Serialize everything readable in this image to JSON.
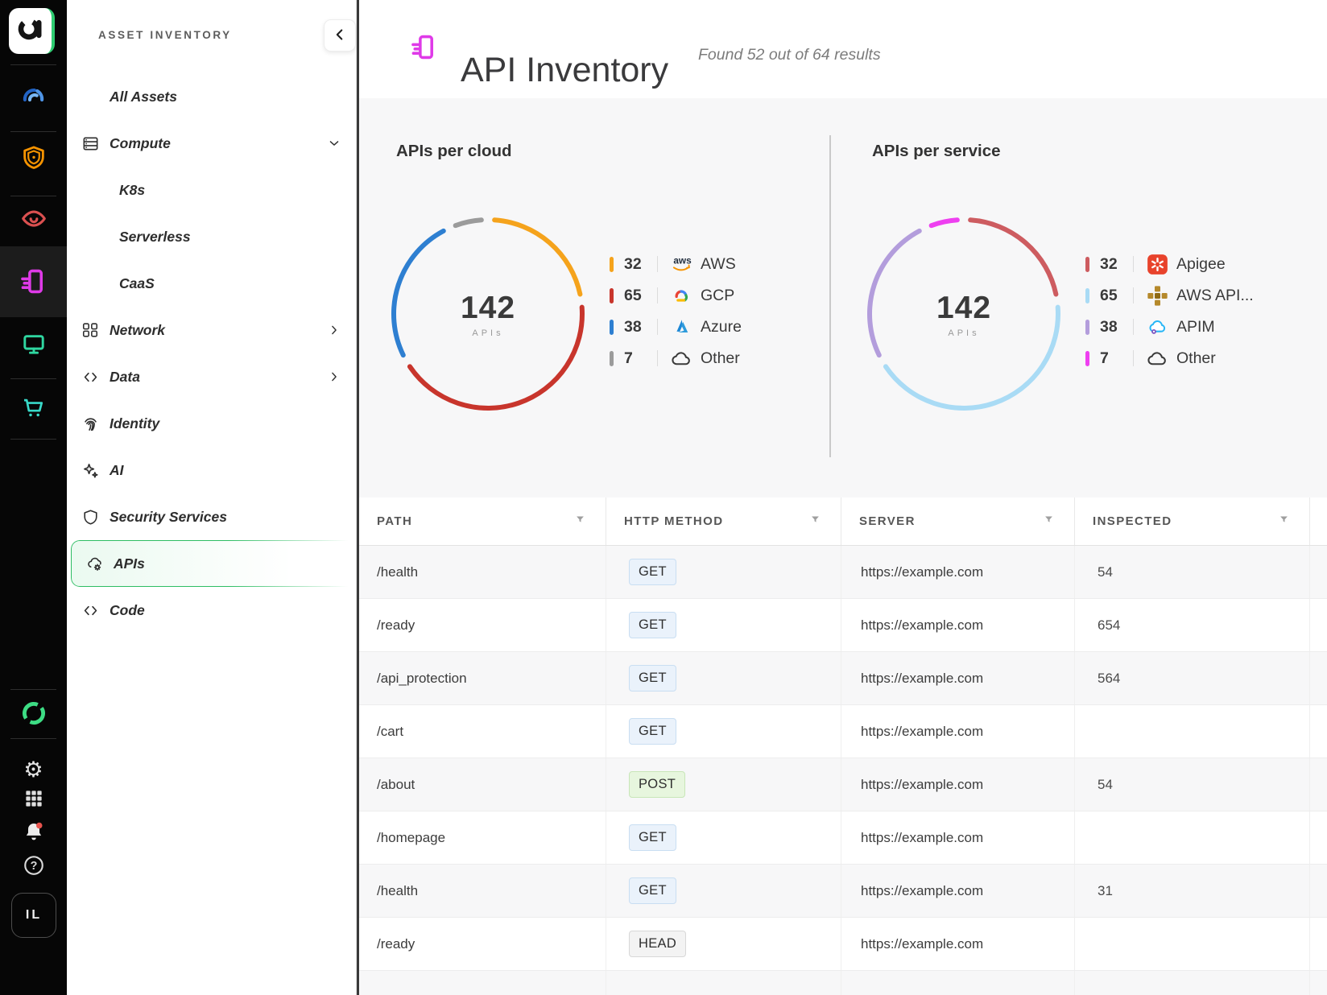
{
  "rail": {
    "user_initials": "IL",
    "icons": [
      "app-logo",
      "gauge",
      "shield",
      "eye",
      "api-document",
      "monitor",
      "cart",
      "ring-logo",
      "settings-gear",
      "apps-grid",
      "notifications-bell",
      "help"
    ]
  },
  "sidebar": {
    "title": "ASSET INVENTORY",
    "collapse_icon": "chevron-left",
    "items": [
      {
        "label": "All Assets",
        "icon": null,
        "chevron": null,
        "sub": false,
        "selected": false
      },
      {
        "label": "Compute",
        "icon": "servers",
        "chevron": "down",
        "sub": false,
        "selected": false
      },
      {
        "label": "K8s",
        "icon": null,
        "chevron": null,
        "sub": true,
        "selected": false
      },
      {
        "label": "Serverless",
        "icon": null,
        "chevron": null,
        "sub": true,
        "selected": false
      },
      {
        "label": "CaaS",
        "icon": null,
        "chevron": null,
        "sub": true,
        "selected": false
      },
      {
        "label": "Network",
        "icon": "network",
        "chevron": "right",
        "sub": false,
        "selected": false
      },
      {
        "label": "Data",
        "icon": "code",
        "chevron": "right",
        "sub": false,
        "selected": false
      },
      {
        "label": "Identity",
        "icon": "fingerprint",
        "chevron": null,
        "sub": false,
        "selected": false
      },
      {
        "label": "AI",
        "icon": "sparkles",
        "chevron": null,
        "sub": false,
        "selected": false
      },
      {
        "label": "Security Services",
        "icon": "shield",
        "chevron": null,
        "sub": false,
        "selected": false
      },
      {
        "label": "APIs",
        "icon": "api-cloud",
        "chevron": null,
        "sub": false,
        "selected": true
      },
      {
        "label": "Code",
        "icon": "code",
        "chevron": null,
        "sub": false,
        "selected": false
      }
    ]
  },
  "header": {
    "title": "API Inventory",
    "subtitle": "Found 52 out of 64 results",
    "icon": "api-document"
  },
  "chart_data": [
    {
      "type": "donut",
      "title": "APIs per cloud",
      "center_value": "142",
      "center_label": "APIs",
      "total": 142,
      "legend_position": "right",
      "segments": [
        {
          "label": "AWS",
          "value": 32,
          "color": "#F5A31C",
          "icon": "aws"
        },
        {
          "label": "GCP",
          "value": 65,
          "color": "#C8352C",
          "icon": "gcp"
        },
        {
          "label": "Azure",
          "value": 38,
          "color": "#2E7FD1",
          "icon": "azure"
        },
        {
          "label": "Other",
          "value": 7,
          "color": "#9B9B9B",
          "icon": "cloud"
        }
      ]
    },
    {
      "type": "donut",
      "title": "APIs per service",
      "center_value": "142",
      "center_label": "APIs",
      "total": 142,
      "legend_position": "right",
      "segments": [
        {
          "label": "Apigee",
          "value": 32,
          "color": "#CD5C60",
          "icon": "apigee"
        },
        {
          "label": "AWS API...",
          "value": 65,
          "color": "#A9DBF5",
          "icon": "aws-gateway"
        },
        {
          "label": "APIM",
          "value": 38,
          "color": "#B39DDC",
          "icon": "apim"
        },
        {
          "label": "Other",
          "value": 7,
          "color": "#EE3FF0",
          "icon": "cloud"
        }
      ]
    }
  ],
  "table": {
    "columns": [
      "PATH",
      "HTTP METHOD",
      "SERVER",
      "INSPECTED"
    ],
    "method_styles": {
      "GET": {
        "bg": "#EAF2FB",
        "border": "#C9DEF2"
      },
      "POST": {
        "bg": "#E7F6DE",
        "border": "#C8E6B8"
      },
      "HEAD": {
        "bg": "#F3F3F3",
        "border": "#D8D8D8"
      }
    },
    "rows": [
      {
        "path": "/health",
        "method": "GET",
        "server": "https://example.com",
        "inspected": "54"
      },
      {
        "path": "/ready",
        "method": "GET",
        "server": "https://example.com",
        "inspected": "654"
      },
      {
        "path": "/api_protection",
        "method": "GET",
        "server": "https://example.com",
        "inspected": "564"
      },
      {
        "path": "/cart",
        "method": "GET",
        "server": "https://example.com",
        "inspected": ""
      },
      {
        "path": "/about",
        "method": "POST",
        "server": "https://example.com",
        "inspected": "54"
      },
      {
        "path": "/homepage",
        "method": "GET",
        "server": "https://example.com",
        "inspected": ""
      },
      {
        "path": "/health",
        "method": "GET",
        "server": "https://example.com",
        "inspected": "31"
      },
      {
        "path": "/ready",
        "method": "HEAD",
        "server": "https://example.com",
        "inspected": ""
      }
    ]
  }
}
